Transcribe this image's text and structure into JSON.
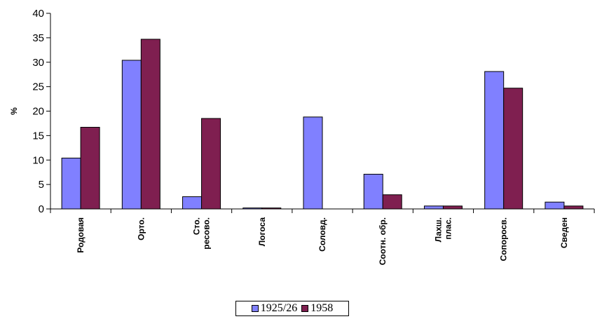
{
  "chart_data": {
    "type": "bar",
    "ylabel": "%",
    "ylim": [
      0,
      40
    ],
    "yticks": [
      0,
      5,
      10,
      15,
      20,
      25,
      30,
      35,
      40
    ],
    "grid": false,
    "legend_position": "bottom-center",
    "categories": [
      [
        "Родовая"
      ],
      [
        "Орто."
      ],
      [
        "Сто.",
        "ресово."
      ],
      [
        "Логоса"
      ],
      [
        "Соловд."
      ],
      [
        "Соотн. обр."
      ],
      [
        "Лахш.",
        "плас."
      ],
      [
        "Сопоросв."
      ],
      [
        "Сведен"
      ]
    ],
    "series": [
      {
        "name": "1925/26",
        "color": "#8080FF",
        "values": [
          10.4,
          30.4,
          2.5,
          0.2,
          18.8,
          7.1,
          0.6,
          28.1,
          1.4
        ]
      },
      {
        "name": "1958",
        "color": "#7F1F50",
        "values": [
          16.7,
          34.7,
          18.5,
          0.2,
          0,
          2.9,
          0.6,
          24.7,
          0.6
        ]
      }
    ]
  }
}
